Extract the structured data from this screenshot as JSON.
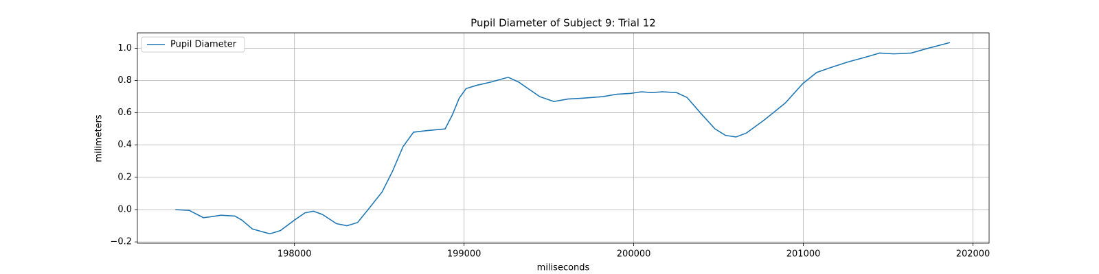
{
  "chart_data": {
    "type": "line",
    "title": "Pupil Diameter of Subject 9: Trial 12",
    "x_label": "miliseconds",
    "y_label": "milimeters",
    "x": [
      197298,
      197380,
      197463,
      197504,
      197566,
      197649,
      197690,
      197752,
      197855,
      197917,
      198000,
      198062,
      198112,
      198165,
      198248,
      198310,
      198372,
      198434,
      198517,
      198579,
      198640,
      198702,
      198785,
      198888,
      198930,
      198971,
      199012,
      199074,
      199157,
      199260,
      199322,
      199446,
      199529,
      199612,
      199694,
      199818,
      199901,
      199983,
      200045,
      200107,
      200169,
      200252,
      200314,
      200397,
      200479,
      200541,
      200603,
      200665,
      200769,
      200893,
      200996,
      201079,
      201161,
      201264,
      201368,
      201450,
      201533,
      201636,
      201719,
      201864
    ],
    "series": [
      {
        "name": "Pupil Diameter",
        "color": "#1f77b4",
        "values": [
          0.0,
          -0.005,
          -0.05,
          -0.045,
          -0.035,
          -0.04,
          -0.065,
          -0.12,
          -0.15,
          -0.13,
          -0.065,
          -0.02,
          -0.01,
          -0.03,
          -0.087,
          -0.1,
          -0.08,
          0.0,
          0.11,
          0.24,
          0.39,
          0.48,
          0.49,
          0.5,
          0.585,
          0.69,
          0.75,
          0.77,
          0.79,
          0.82,
          0.79,
          0.7,
          0.67,
          0.685,
          0.69,
          0.7,
          0.715,
          0.72,
          0.73,
          0.725,
          0.73,
          0.725,
          0.695,
          0.595,
          0.5,
          0.46,
          0.45,
          0.475,
          0.555,
          0.66,
          0.78,
          0.85,
          0.88,
          0.915,
          0.945,
          0.97,
          0.965,
          0.97,
          0.995,
          1.035
        ]
      }
    ],
    "xlim": [
      197074,
      202095
    ],
    "ylim": [
      -0.208,
      1.095
    ],
    "xticks": [
      198000,
      199000,
      200000,
      201000,
      202000
    ],
    "yticks": [
      {
        "value": -0.2,
        "label": "−0.2"
      },
      {
        "value": 0,
        "label": "0.0"
      },
      {
        "value": 0.2,
        "label": "0.2"
      },
      {
        "value": 0.4,
        "label": "0.4"
      },
      {
        "value": 0.6,
        "label": "0.6"
      },
      {
        "value": 0.8,
        "label": "0.8"
      },
      {
        "value": 1.0,
        "label": "1.0"
      }
    ],
    "grid": true,
    "legend": "upper left"
  }
}
